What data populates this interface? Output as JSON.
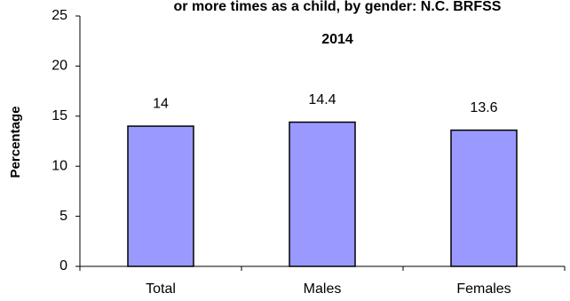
{
  "chart_data": {
    "type": "bar",
    "title": [
      "or more times as a child, by gender: N.C. BRFSS",
      "2014"
    ],
    "y_label": "Percentage",
    "categories": [
      "Total",
      "Males",
      "Females"
    ],
    "values": [
      14,
      14.4,
      13.6
    ],
    "color": "#9999ff",
    "ylim": [
      0,
      25
    ],
    "yticks": [
      0,
      5,
      10,
      15,
      20,
      25
    ],
    "grid": false
  }
}
